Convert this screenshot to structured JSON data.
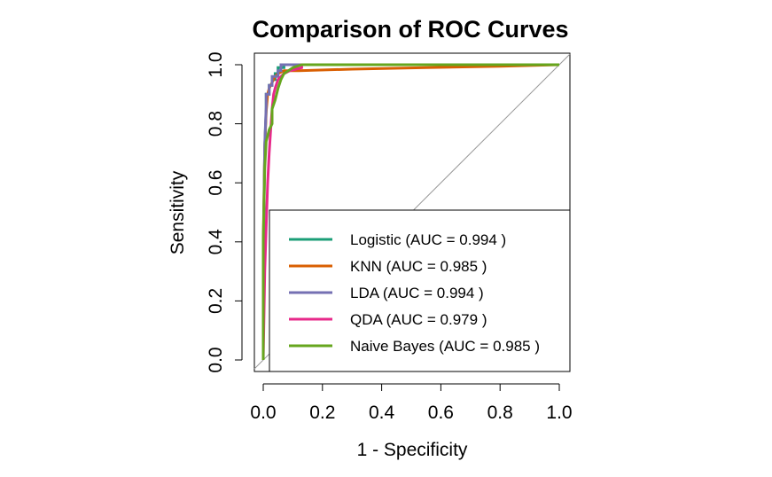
{
  "chart_data": {
    "type": "line",
    "title": "Comparison of ROC Curves",
    "xlabel": "1 - Specificity",
    "ylabel": "Sensitivity",
    "xlim": [
      0,
      1
    ],
    "ylim": [
      0,
      1
    ],
    "x_ticks": [
      "0.0",
      "0.2",
      "0.4",
      "0.6",
      "0.8",
      "1.0"
    ],
    "y_ticks": [
      "0.0",
      "0.2",
      "0.4",
      "0.6",
      "0.8",
      "1.0"
    ],
    "reference_line": "diagonal",
    "grid": false,
    "legend_position": "bottom-right",
    "series": [
      {
        "name": "Logistic",
        "legend_label": "Logistic (AUC = 0.994 )",
        "auc": 0.994,
        "color": "#1b9e77",
        "points": [
          [
            0,
            0
          ],
          [
            0,
            0.3
          ],
          [
            0.005,
            0.72
          ],
          [
            0.01,
            0.85
          ],
          [
            0.01,
            0.9
          ],
          [
            0.02,
            0.9
          ],
          [
            0.02,
            0.93
          ],
          [
            0.03,
            0.93
          ],
          [
            0.03,
            0.95
          ],
          [
            0.04,
            0.95
          ],
          [
            0.04,
            0.97
          ],
          [
            0.05,
            0.97
          ],
          [
            0.05,
            0.99
          ],
          [
            0.07,
            0.99
          ],
          [
            0.07,
            1.0
          ],
          [
            1.0,
            1.0
          ]
        ]
      },
      {
        "name": "KNN",
        "legend_label": "KNN (AUC = 0.985 )",
        "auc": 0.985,
        "color": "#d95f02",
        "points": [
          [
            0,
            0
          ],
          [
            0,
            0.4
          ],
          [
            0.005,
            0.72
          ],
          [
            0.01,
            0.84
          ],
          [
            0.015,
            0.9
          ],
          [
            0.02,
            0.92
          ],
          [
            0.03,
            0.94
          ],
          [
            0.04,
            0.96
          ],
          [
            0.05,
            0.97
          ],
          [
            0.07,
            0.98
          ],
          [
            0.12,
            0.98
          ],
          [
            0.3,
            0.985
          ],
          [
            0.55,
            0.99
          ],
          [
            0.8,
            0.995
          ],
          [
            1.0,
            1.0
          ]
        ]
      },
      {
        "name": "LDA",
        "legend_label": "LDA (AUC = 0.994 )",
        "auc": 0.994,
        "color": "#7570b3",
        "points": [
          [
            0,
            0
          ],
          [
            0,
            0.35
          ],
          [
            0.005,
            0.73
          ],
          [
            0.01,
            0.86
          ],
          [
            0.01,
            0.9
          ],
          [
            0.02,
            0.9
          ],
          [
            0.02,
            0.93
          ],
          [
            0.03,
            0.93
          ],
          [
            0.03,
            0.96
          ],
          [
            0.05,
            0.96
          ],
          [
            0.05,
            0.98
          ],
          [
            0.06,
            0.98
          ],
          [
            0.06,
            1.0
          ],
          [
            1.0,
            1.0
          ]
        ]
      },
      {
        "name": "QDA",
        "legend_label": "QDA (AUC = 0.979 )",
        "auc": 0.979,
        "color": "#e7298a",
        "points": [
          [
            0,
            0
          ],
          [
            0.005,
            0.3
          ],
          [
            0.01,
            0.45
          ],
          [
            0.015,
            0.6
          ],
          [
            0.02,
            0.7
          ],
          [
            0.025,
            0.78
          ],
          [
            0.03,
            0.85
          ],
          [
            0.035,
            0.9
          ],
          [
            0.04,
            0.92
          ],
          [
            0.05,
            0.95
          ],
          [
            0.06,
            0.96
          ],
          [
            0.07,
            0.97
          ],
          [
            0.09,
            0.98
          ],
          [
            0.13,
            0.99
          ],
          [
            0.13,
            1.0
          ],
          [
            1.0,
            1.0
          ]
        ]
      },
      {
        "name": "Naive Bayes",
        "legend_label": "Naive Bayes (AUC = 0.985 )",
        "auc": 0.985,
        "color": "#66a61e",
        "points": [
          [
            0,
            0
          ],
          [
            0,
            0.4
          ],
          [
            0.005,
            0.65
          ],
          [
            0.01,
            0.74
          ],
          [
            0.02,
            0.78
          ],
          [
            0.03,
            0.8
          ],
          [
            0.03,
            0.85
          ],
          [
            0.04,
            0.88
          ],
          [
            0.05,
            0.92
          ],
          [
            0.06,
            0.95
          ],
          [
            0.07,
            0.97
          ],
          [
            0.1,
            0.99
          ],
          [
            0.13,
            1.0
          ],
          [
            1.0,
            1.0
          ]
        ]
      }
    ]
  }
}
